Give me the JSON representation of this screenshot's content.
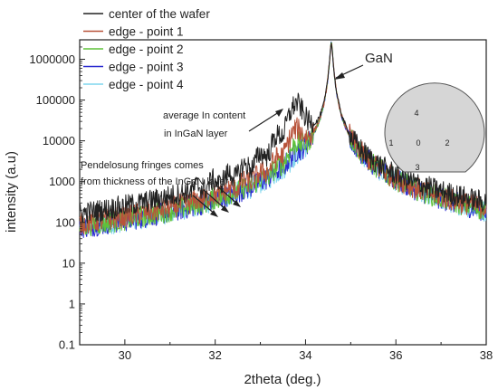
{
  "chart_data": {
    "type": "line",
    "xlabel": "2theta (deg.)",
    "ylabel": "intensity (a.u)",
    "xlim": [
      29,
      38
    ],
    "ylim": [
      0.1,
      3000000
    ],
    "yscale": "log",
    "grid": false,
    "legend_position": "top-left",
    "x_ticks": [
      30,
      32,
      34,
      36,
      38
    ],
    "y_ticks": [
      0.1,
      1,
      10,
      100,
      1000,
      10000,
      100000,
      1000000
    ],
    "x_tick_labels": [
      "30",
      "32",
      "34",
      "36",
      "38"
    ],
    "y_tick_labels": [
      "0.1",
      "1",
      "10",
      "100",
      "1000",
      "10000",
      "100000",
      "1000000"
    ],
    "series": [
      {
        "name": "center of the wafer",
        "color": "#222222",
        "ingan_peak_x": 33.8,
        "ingan_peak_y": 80000,
        "gan_peak_y": 2500000,
        "background_left": 4,
        "background_right": 6
      },
      {
        "name": "edge - point 1",
        "color": "#b8533a",
        "ingan_peak_x": 33.8,
        "ingan_peak_y": 16000,
        "gan_peak_y": 2500000,
        "background_left": 3,
        "background_right": 5
      },
      {
        "name": "edge - point 2",
        "color": "#5fc23a",
        "ingan_peak_x": 33.8,
        "ingan_peak_y": 5000,
        "gan_peak_y": 2500000,
        "background_left": 1.5,
        "background_right": 2.5
      },
      {
        "name": "edge - point 3",
        "color": "#2a2ad0",
        "ingan_peak_x": 33.8,
        "ingan_peak_y": 1800,
        "gan_peak_y": 2500000,
        "background_left": 0.6,
        "background_right": 0.8
      },
      {
        "name": "edge - point 4",
        "color": "#7fd6ee",
        "ingan_peak_x": 33.8,
        "ingan_peak_y": 800,
        "gan_peak_y": 2500000,
        "background_left": 0.25,
        "background_right": 0.3
      }
    ],
    "annotations": {
      "gan": "GaN",
      "indium_line1": "average In content",
      "indium_line2": "in InGaN layer",
      "fringes_line1": "Pendelosung fringes comes",
      "fringes_line2": "from thickness of the InGaN layer"
    },
    "wafer_points": [
      "4",
      "1",
      "0",
      "2",
      "3"
    ]
  }
}
